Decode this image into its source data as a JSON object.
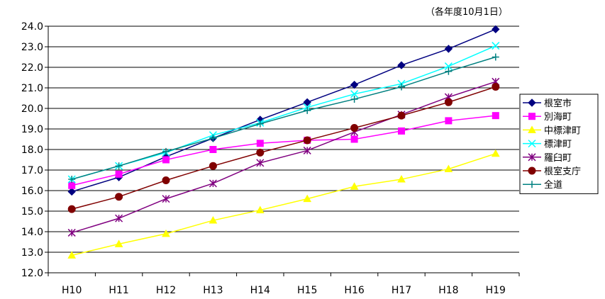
{
  "chart_data": {
    "type": "line",
    "note": "（各年度10月1日）",
    "categories": [
      "H10",
      "H11",
      "H12",
      "H13",
      "H14",
      "H15",
      "H16",
      "H17",
      "H18",
      "H19"
    ],
    "ylim": [
      12.0,
      24.0
    ],
    "yticks": [
      "12.0",
      "13.0",
      "14.0",
      "15.0",
      "16.0",
      "17.0",
      "18.0",
      "19.0",
      "20.0",
      "21.0",
      "22.0",
      "23.0",
      "24.0"
    ],
    "grid": "horizontal",
    "legend_position": "right",
    "series": [
      {
        "name": "根室市",
        "color": "#000080",
        "marker": "diamond",
        "values": [
          15.95,
          16.65,
          17.65,
          18.55,
          19.45,
          20.3,
          21.15,
          22.1,
          22.9,
          23.85
        ]
      },
      {
        "name": "別海町",
        "color": "#FF00FF",
        "marker": "square",
        "values": [
          16.25,
          16.8,
          17.5,
          18.0,
          18.3,
          18.45,
          18.5,
          18.9,
          19.4,
          19.65
        ]
      },
      {
        "name": "中標津町",
        "color": "#FFFF00",
        "marker": "triangle",
        "values": [
          12.85,
          13.4,
          13.9,
          14.55,
          15.05,
          15.6,
          16.2,
          16.55,
          17.05,
          17.8
        ]
      },
      {
        "name": "標津町",
        "color": "#00FFFF",
        "marker": "x",
        "values": [
          16.55,
          17.2,
          17.85,
          18.7,
          19.3,
          20.05,
          20.7,
          21.2,
          22.05,
          23.05
        ]
      },
      {
        "name": "羅臼町",
        "color": "#800080",
        "marker": "star",
        "values": [
          13.95,
          14.65,
          15.6,
          16.35,
          17.35,
          17.95,
          18.85,
          19.7,
          20.55,
          21.3
        ]
      },
      {
        "name": "根室支庁",
        "color": "#800000",
        "marker": "circle",
        "values": [
          15.1,
          15.7,
          16.5,
          17.2,
          17.85,
          18.45,
          19.05,
          19.65,
          20.3,
          21.05
        ]
      },
      {
        "name": "全道",
        "color": "#008080",
        "marker": "plus",
        "values": [
          16.55,
          17.2,
          17.9,
          18.55,
          19.25,
          19.9,
          20.45,
          21.05,
          21.8,
          22.5
        ]
      }
    ]
  }
}
